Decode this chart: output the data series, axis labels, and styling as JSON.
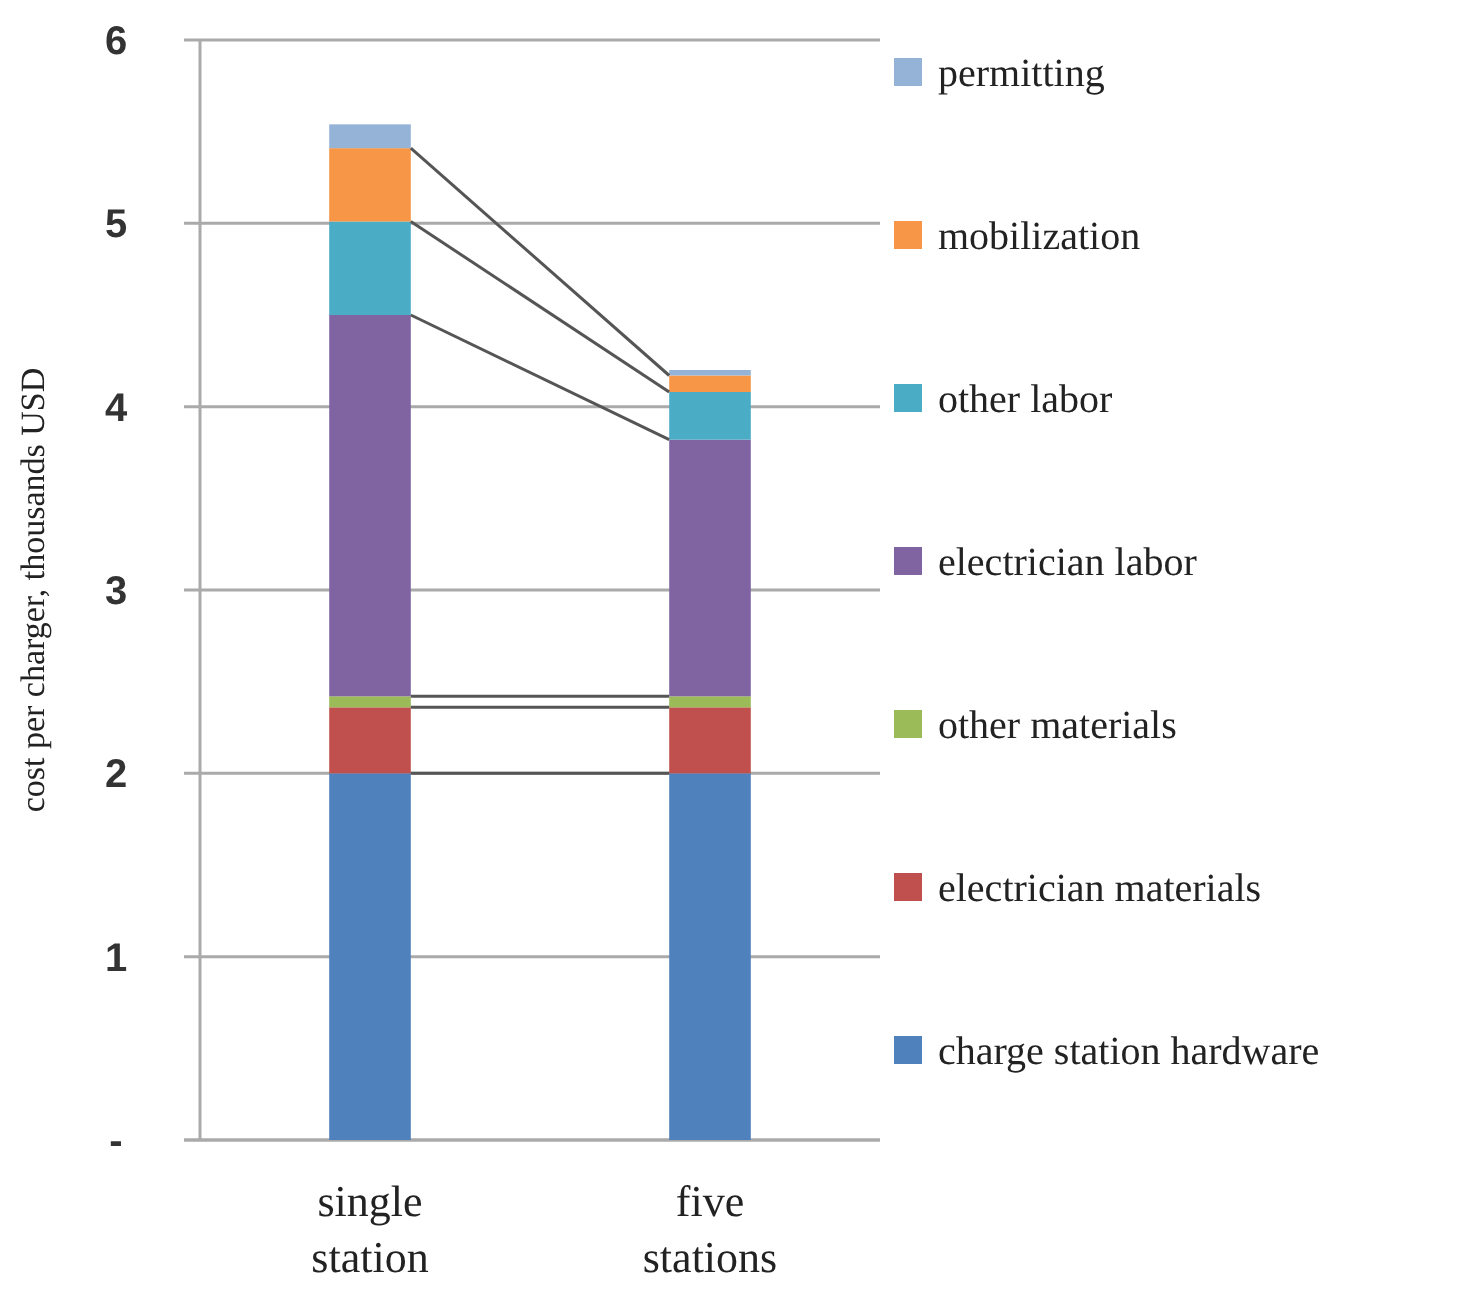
{
  "chart_data": {
    "type": "bar",
    "stacked": true,
    "ylabel": "cost per charger, thousands USD",
    "categories": [
      "single\nstation",
      "five\nstations"
    ],
    "series": [
      {
        "name": "charge station hardware",
        "color": "#4f81bd",
        "values": [
          2.0,
          2.0
        ]
      },
      {
        "name": "electrician materials",
        "color": "#c0504d",
        "values": [
          0.36,
          0.36
        ]
      },
      {
        "name": "other materials",
        "color": "#9bbb59",
        "values": [
          0.06,
          0.06
        ]
      },
      {
        "name": "electrician labor",
        "color": "#8064a2",
        "values": [
          2.08,
          1.4
        ]
      },
      {
        "name": "other labor",
        "color": "#4bacc6",
        "values": [
          0.51,
          0.26
        ]
      },
      {
        "name": "mobilization",
        "color": "#f79646",
        "values": [
          0.4,
          0.09
        ]
      },
      {
        "name": "permitting",
        "color": "#95b3d7",
        "values": [
          0.13,
          0.03
        ]
      }
    ],
    "ylim": [
      0,
      6
    ],
    "yticks": [
      {
        "value": 0,
        "label": "-"
      },
      1,
      2,
      3,
      4,
      5,
      6
    ],
    "grid": "y",
    "legend": "right"
  }
}
